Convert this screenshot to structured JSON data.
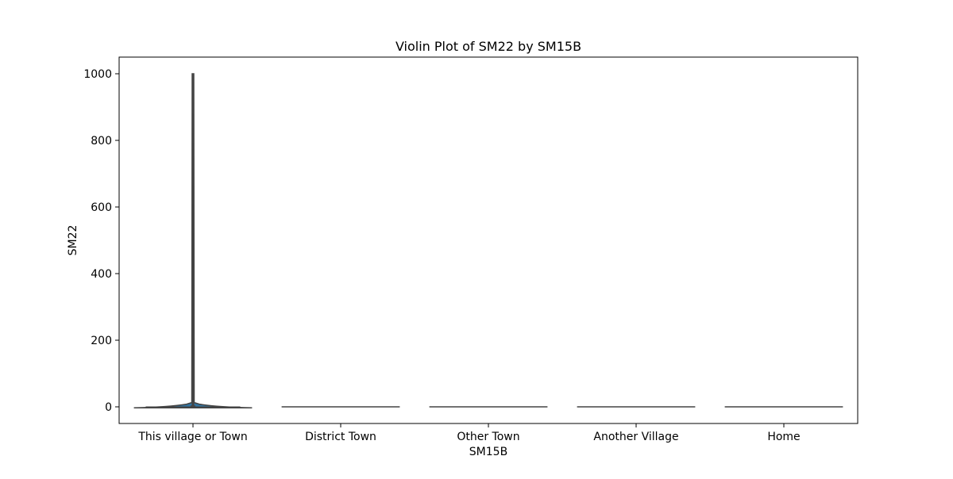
{
  "chart_data": {
    "type": "violin",
    "title": "Violin Plot of SM22 by SM15B",
    "xlabel": "SM15B",
    "ylabel": "SM22",
    "categories": [
      "This village or Town",
      "District Town",
      "Other Town",
      "Another Village",
      "Home"
    ],
    "ylim": [
      -50,
      1050
    ],
    "yticks": [
      0,
      200,
      400,
      600,
      800,
      1000
    ],
    "grid": false,
    "legend": "none",
    "series": [
      {
        "category": "This village or Town",
        "min": -3,
        "max": 1000,
        "median": 2,
        "q1": 0,
        "q3": 4
      },
      {
        "category": "District Town",
        "min": 0,
        "max": 0,
        "median": 0
      },
      {
        "category": "Other Town",
        "min": 0,
        "max": 0,
        "median": 0
      },
      {
        "category": "Another Village",
        "min": 0,
        "max": 0,
        "median": 0
      },
      {
        "category": "Home",
        "min": 0,
        "max": 0,
        "median": 0
      }
    ],
    "colors": {
      "violin_fill": "#3274a1",
      "violin_edge": "#444444",
      "axis": "#000000"
    }
  }
}
